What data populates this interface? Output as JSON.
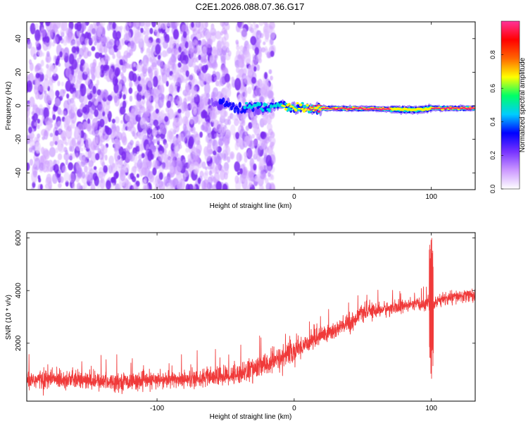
{
  "page": {
    "title": "C2E1.2026.088.07.36.G17"
  },
  "chart_data": [
    {
      "type": "heatmap",
      "xlabel": "Height of straight line (km)",
      "ylabel": "Frequency (Hz)",
      "xlim": [
        -195,
        132
      ],
      "ylim": [
        -50,
        50
      ],
      "xticks": [
        -100,
        0,
        100
      ],
      "yticks": [
        -40,
        -20,
        0,
        20,
        40
      ],
      "grid": false,
      "colorbar": {
        "label": "Normalized spectral amplitude",
        "range": [
          0,
          1
        ],
        "ticks": [
          "0.0",
          "0.2",
          "0.4",
          "0.6",
          "0.8"
        ],
        "colors": [
          "#ffffff",
          "#cc99ff",
          "#7733ff",
          "#0000ff",
          "#00ccff",
          "#00ff66",
          "#ffff00",
          "#ff6600",
          "#ff0000",
          "#ff3399"
        ]
      },
      "noise_region": {
        "x": [
          -195,
          -15
        ],
        "f": [
          -50,
          50
        ],
        "amplitude_range": [
          0.05,
          0.2
        ]
      },
      "signal_track": [
        {
          "x": -60,
          "f": 0.5,
          "amp": 0.18
        },
        {
          "x": -50,
          "f": 1.5,
          "amp": 0.35
        },
        {
          "x": -40,
          "f": -2.0,
          "amp": 0.4
        },
        {
          "x": -30,
          "f": -1.0,
          "amp": 0.45
        },
        {
          "x": -20,
          "f": -1.5,
          "amp": 0.5
        },
        {
          "x": -10,
          "f": 0.0,
          "amp": 0.6
        },
        {
          "x": 0,
          "f": -1.0,
          "amp": 0.8
        },
        {
          "x": 20,
          "f": -1.5,
          "amp": 1.0
        },
        {
          "x": 60,
          "f": -1.8,
          "amp": 1.0
        },
        {
          "x": 90,
          "f": -2.5,
          "amp": 0.7
        },
        {
          "x": 100,
          "f": -1.5,
          "amp": 0.9
        },
        {
          "x": 132,
          "f": -1.5,
          "amp": 1.0
        }
      ]
    },
    {
      "type": "line",
      "xlabel": "Height of straight line (km)",
      "ylabel": "SNR (10 * v/v)",
      "xlim": [
        -195,
        132
      ],
      "ylim": [
        -200,
        6200
      ],
      "xticks": [
        -100,
        0,
        100
      ],
      "yticks": [
        2000,
        4000,
        6000
      ],
      "grid": false,
      "series": [
        {
          "color": "#f03a3a",
          "x": [
            -195,
            -170,
            -145,
            -120,
            -100,
            -80,
            -60,
            -45,
            -30,
            -15,
            0,
            15,
            30,
            45,
            46,
            60,
            80,
            95,
            100,
            101,
            103,
            110,
            132
          ],
          "mean": [
            600,
            650,
            550,
            550,
            580,
            650,
            700,
            800,
            1000,
            1300,
            1700,
            2200,
            2500,
            2900,
            3100,
            3250,
            3400,
            3500,
            3600,
            3300,
            3550,
            3700,
            3850
          ],
          "noise": [
            330,
            330,
            300,
            280,
            280,
            300,
            320,
            350,
            400,
            420,
            400,
            350,
            330,
            320,
            250,
            250,
            230,
            230,
            230,
            230,
            220,
            220,
            220
          ]
        }
      ],
      "spike": {
        "x": 100,
        "max": 6150,
        "min": 400
      }
    }
  ]
}
